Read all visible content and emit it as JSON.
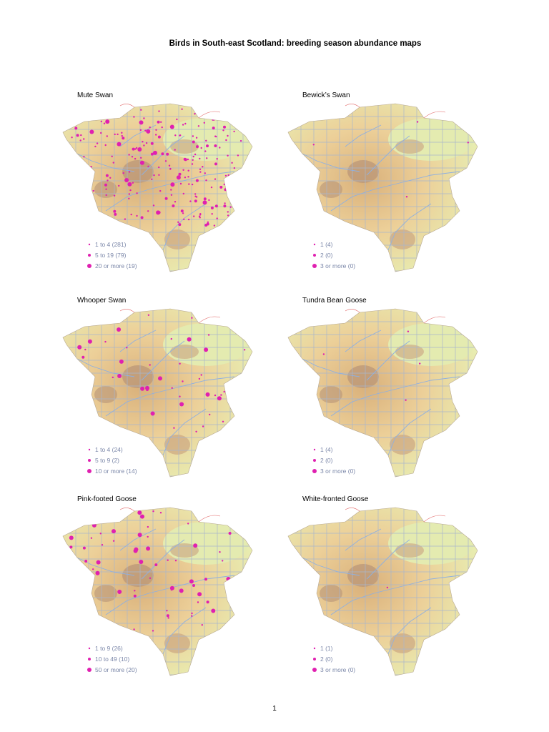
{
  "title": "Birds in South-east Scotland: breeding season abundance maps",
  "maps": [
    {
      "title": "Mute Swan",
      "legend": [
        "1 to 4 (281)",
        "5 to 19 (79)",
        "20 or more (19)"
      ]
    },
    {
      "title": "Bewick’s Swan",
      "legend": [
        "1 (4)",
        "2 (0)",
        "3 or more (0)"
      ]
    },
    {
      "title": "Whooper Swan",
      "legend": [
        "1 to 4 (24)",
        "5 to 9 (2)",
        "10 or more (14)"
      ]
    },
    {
      "title": "Tundra Bean Goose",
      "legend": [
        "1 (4)",
        "2 (0)",
        "3 or more (0)"
      ]
    },
    {
      "title": "Pink-footed Goose",
      "legend": [
        "1 to 9 (26)",
        "10 to 49 (10)",
        "50 or more (20)"
      ]
    },
    {
      "title": "White-fronted Goose",
      "legend": [
        "1 (1)",
        "2 (0)",
        "3 or more (0)"
      ]
    }
  ],
  "page_number": "1"
}
